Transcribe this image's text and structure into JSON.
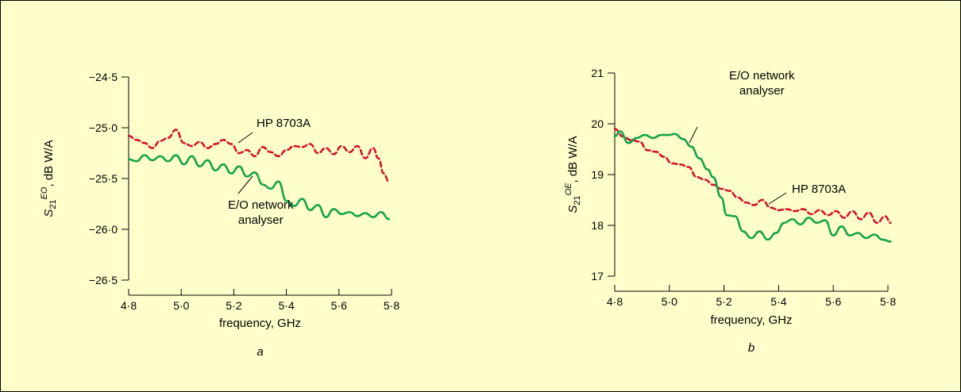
{
  "colors": {
    "background": "#ffffcc",
    "green": "#16a34a",
    "red": "#d0142c",
    "axis": "#000000"
  },
  "chart_data": [
    {
      "type": "line",
      "panel_label": "a",
      "xlabel": "frequency, GHz",
      "ylabel_main": "S",
      "ylabel_sub": "21",
      "ylabel_sup": "EO",
      "ylabel_rest": ", dB W/A",
      "xlim": [
        4.8,
        5.8
      ],
      "ylim": [
        -26.5,
        -24.5
      ],
      "xticks": [
        4.8,
        5.0,
        5.2,
        5.4,
        5.6,
        5.8
      ],
      "xtick_labels": [
        "4·8",
        "5·0",
        "5·2",
        "5·4",
        "5·6",
        "5·8"
      ],
      "yticks": [
        -26.5,
        -26.0,
        -25.5,
        -25.0,
        -24.5
      ],
      "ytick_labels": [
        "−26·5",
        "−26·0",
        "−25·5",
        "−25·0",
        "−24·5"
      ],
      "annotations": [
        {
          "text": "HP 8703A"
        },
        {
          "text": "E/O network",
          "text2": "analyser"
        }
      ],
      "series": [
        {
          "name": "HP 8703A",
          "color": "red",
          "dashed": true,
          "x": [
            4.8,
            4.83,
            4.86,
            4.89,
            4.92,
            4.95,
            4.98,
            5.01,
            5.04,
            5.07,
            5.1,
            5.13,
            5.16,
            5.19,
            5.22,
            5.25,
            5.28,
            5.31,
            5.34,
            5.37,
            5.4,
            5.43,
            5.46,
            5.49,
            5.52,
            5.55,
            5.58,
            5.61,
            5.64,
            5.67,
            5.7,
            5.73,
            5.75,
            5.77,
            5.79
          ],
          "y": [
            -25.08,
            -25.12,
            -25.15,
            -25.2,
            -25.13,
            -25.1,
            -25.02,
            -25.15,
            -25.18,
            -25.14,
            -25.2,
            -25.16,
            -25.12,
            -25.16,
            -25.25,
            -25.22,
            -25.28,
            -25.19,
            -25.24,
            -25.28,
            -25.22,
            -25.18,
            -25.19,
            -25.16,
            -25.25,
            -25.2,
            -25.26,
            -25.18,
            -25.24,
            -25.18,
            -25.3,
            -25.2,
            -25.3,
            -25.45,
            -25.53
          ]
        },
        {
          "name": "E/O network analyser",
          "color": "green",
          "dashed": false,
          "x": [
            4.8,
            4.83,
            4.86,
            4.89,
            4.92,
            4.95,
            4.98,
            5.01,
            5.04,
            5.07,
            5.1,
            5.13,
            5.16,
            5.19,
            5.22,
            5.25,
            5.28,
            5.31,
            5.34,
            5.37,
            5.4,
            5.43,
            5.46,
            5.49,
            5.52,
            5.55,
            5.58,
            5.61,
            5.64,
            5.67,
            5.7,
            5.73,
            5.76,
            5.79
          ],
          "y": [
            -25.31,
            -25.33,
            -25.27,
            -25.32,
            -25.28,
            -25.33,
            -25.27,
            -25.36,
            -25.28,
            -25.38,
            -25.32,
            -25.42,
            -25.36,
            -25.45,
            -25.38,
            -25.48,
            -25.44,
            -25.56,
            -25.6,
            -25.53,
            -25.72,
            -25.77,
            -25.7,
            -25.81,
            -25.76,
            -25.88,
            -25.8,
            -25.85,
            -25.83,
            -25.87,
            -25.84,
            -25.88,
            -25.83,
            -25.9
          ]
        }
      ]
    },
    {
      "type": "line",
      "panel_label": "b",
      "xlabel": "frequency, GHz",
      "ylabel_main": "S",
      "ylabel_sub": "21",
      "ylabel_sup": "OE",
      "ylabel_rest": ", dB W/A",
      "xlim": [
        4.8,
        5.8
      ],
      "ylim": [
        17,
        21
      ],
      "xticks": [
        4.8,
        5.0,
        5.2,
        5.4,
        5.6,
        5.8
      ],
      "xtick_labels": [
        "4·8",
        "5·0",
        "5·2",
        "5·4",
        "5·6",
        "5·8"
      ],
      "yticks": [
        17,
        18,
        19,
        20,
        21
      ],
      "ytick_labels": [
        "17",
        "18",
        "19",
        "20",
        "21"
      ],
      "annotations": [
        {
          "text": "E/O network",
          "text2": "analyser"
        },
        {
          "text": "HP 8703A"
        }
      ],
      "series": [
        {
          "name": "HP 8703A",
          "color": "red",
          "dashed": true,
          "x": [
            4.8,
            4.83,
            4.86,
            4.89,
            4.92,
            4.95,
            4.98,
            5.01,
            5.04,
            5.07,
            5.1,
            5.13,
            5.16,
            5.19,
            5.22,
            5.25,
            5.28,
            5.31,
            5.34,
            5.37,
            5.4,
            5.43,
            5.46,
            5.49,
            5.52,
            5.55,
            5.58,
            5.61,
            5.64,
            5.67,
            5.7,
            5.73,
            5.76,
            5.79,
            5.81
          ],
          "y": [
            19.9,
            19.75,
            19.68,
            19.65,
            19.48,
            19.45,
            19.35,
            19.22,
            19.2,
            19.15,
            18.95,
            18.9,
            18.8,
            18.72,
            18.68,
            18.55,
            18.45,
            18.4,
            18.5,
            18.35,
            18.3,
            18.32,
            18.28,
            18.32,
            18.22,
            18.3,
            18.2,
            18.28,
            18.15,
            18.28,
            18.12,
            18.25,
            18.05,
            18.18,
            18.05
          ]
        },
        {
          "name": "E/O network analyser",
          "color": "green",
          "dashed": false,
          "x": [
            4.8,
            4.82,
            4.85,
            4.88,
            4.91,
            4.94,
            4.97,
            5.0,
            5.02,
            5.05,
            5.08,
            5.11,
            5.14,
            5.16,
            5.19,
            5.21,
            5.24,
            5.27,
            5.3,
            5.33,
            5.36,
            5.39,
            5.42,
            5.45,
            5.48,
            5.51,
            5.54,
            5.57,
            5.6,
            5.63,
            5.66,
            5.69,
            5.72,
            5.75,
            5.78,
            5.81
          ],
          "y": [
            19.75,
            19.85,
            19.62,
            19.72,
            19.78,
            19.72,
            19.78,
            19.78,
            19.8,
            19.7,
            19.55,
            19.32,
            19.1,
            18.95,
            18.55,
            18.2,
            18.18,
            17.88,
            17.75,
            17.88,
            17.72,
            17.85,
            18.05,
            18.12,
            18.02,
            18.15,
            18.05,
            18.1,
            17.8,
            17.98,
            17.8,
            17.85,
            17.75,
            17.82,
            17.72,
            17.68
          ]
        }
      ]
    }
  ]
}
